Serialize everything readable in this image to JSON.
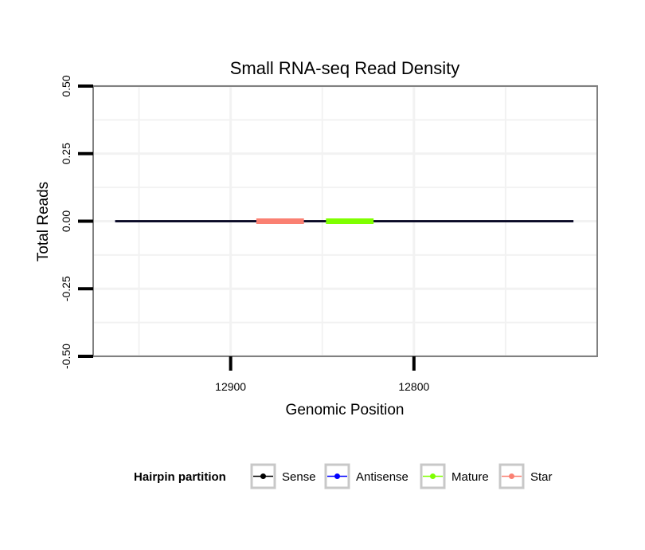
{
  "chart_data": {
    "type": "line",
    "title": "Small RNA-seq Read Density",
    "xlabel": "Genomic Position",
    "ylabel": "Total Reads",
    "x_reversed": true,
    "xlim": [
      12975,
      12700
    ],
    "ylim": [
      -0.5,
      0.5
    ],
    "x_ticks": [
      12900,
      12800
    ],
    "x_tick_labels": [
      "12900",
      "12800"
    ],
    "y_ticks": [
      -0.5,
      -0.25,
      0,
      0.25,
      0.5
    ],
    "y_tick_labels": [
      "-0.50",
      "-0.25",
      "0.00",
      "0.25",
      "0.50"
    ],
    "grid": true,
    "series": [
      {
        "name": "Sense",
        "color": "#000000",
        "x": [
          12963,
          12713
        ],
        "y": [
          0,
          0
        ]
      },
      {
        "name": "Antisense",
        "color": "#0000ff",
        "x": [
          12963,
          12713
        ],
        "y": [
          0,
          0
        ]
      },
      {
        "name": "Mature",
        "color": "#7fff00",
        "x": [
          12848,
          12822
        ],
        "y": [
          0,
          0
        ]
      },
      {
        "name": "Star",
        "color": "#fa8072",
        "x": [
          12886,
          12860
        ],
        "y": [
          0,
          0
        ]
      }
    ],
    "legend": {
      "title": "Hairpin partition",
      "position": "bottom",
      "entries": [
        "Sense",
        "Antisense",
        "Mature",
        "Star"
      ]
    }
  }
}
